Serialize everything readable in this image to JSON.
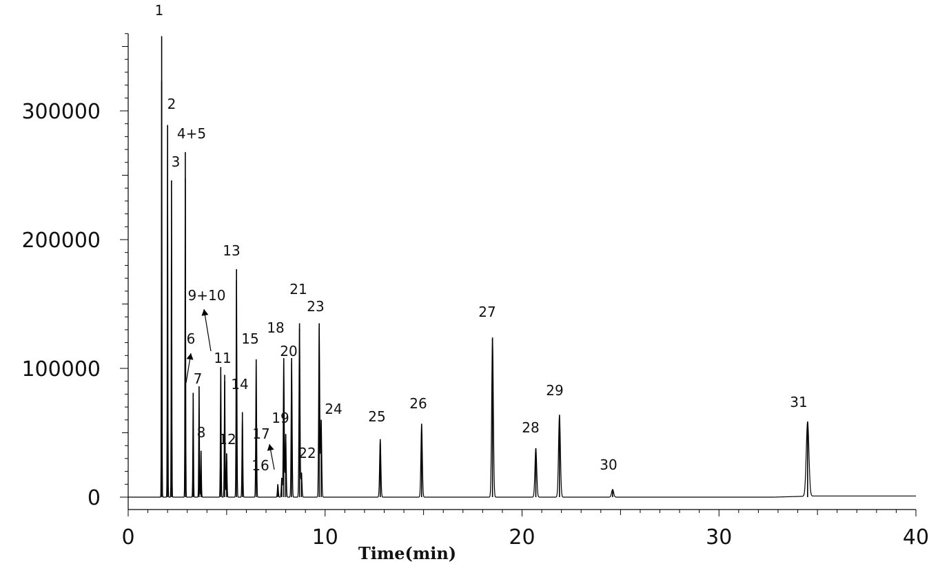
{
  "chart_data": {
    "type": "line",
    "title": "",
    "xlabel": "Time(min)",
    "ylabel": "",
    "xlim": [
      0,
      40
    ],
    "ylim": [
      0,
      360000
    ],
    "x_ticks": [
      "0",
      "10",
      "20",
      "30",
      "40"
    ],
    "y_ticks": [
      "0",
      "100000",
      "200000",
      "300000"
    ],
    "grid": false,
    "line_color": "#000000",
    "peaks": [
      {
        "label": "1",
        "rt": 1.7,
        "height": 358000
      },
      {
        "label": "2",
        "rt": 2.0,
        "height": 289000
      },
      {
        "label": "3",
        "rt": 2.2,
        "height": 246000
      },
      {
        "label": "4+5",
        "rt": 2.9,
        "height": 268000
      },
      {
        "label": "6",
        "rt": 3.3,
        "height": 81000
      },
      {
        "label": "7",
        "rt": 3.6,
        "height": 86000
      },
      {
        "label": "8",
        "rt": 3.7,
        "height": 36000
      },
      {
        "label": "9+10",
        "rt": 4.7,
        "height": 101000
      },
      {
        "label": "11",
        "rt": 4.9,
        "height": 95000
      },
      {
        "label": "12",
        "rt": 5.0,
        "height": 34000
      },
      {
        "label": "13",
        "rt": 5.5,
        "height": 177000
      },
      {
        "label": "14",
        "rt": 5.8,
        "height": 66000
      },
      {
        "label": "15",
        "rt": 6.5,
        "height": 107000
      },
      {
        "label": "16",
        "rt": 7.6,
        "height": 10000
      },
      {
        "label": "17",
        "rt": 7.8,
        "height": 15000
      },
      {
        "label": "18",
        "rt": 7.9,
        "height": 108000
      },
      {
        "label": "19",
        "rt": 8.0,
        "height": 49000
      },
      {
        "label": "20",
        "rt": 8.3,
        "height": 108000
      },
      {
        "label": "21",
        "rt": 8.7,
        "height": 135000
      },
      {
        "label": "22",
        "rt": 8.8,
        "height": 19000
      },
      {
        "label": "23",
        "rt": 9.7,
        "height": 135000
      },
      {
        "label": "24",
        "rt": 9.8,
        "height": 60000
      },
      {
        "label": "25",
        "rt": 12.8,
        "height": 45000
      },
      {
        "label": "26",
        "rt": 14.9,
        "height": 57000
      },
      {
        "label": "27",
        "rt": 18.5,
        "height": 124000
      },
      {
        "label": "28",
        "rt": 20.7,
        "height": 38000
      },
      {
        "label": "29",
        "rt": 21.9,
        "height": 64000
      },
      {
        "label": "30",
        "rt": 24.6,
        "height": 6000
      },
      {
        "label": "31",
        "rt": 34.5,
        "height": 58000
      }
    ]
  }
}
